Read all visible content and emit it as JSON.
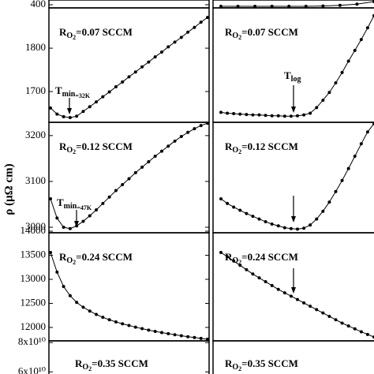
{
  "y_label": "ρ (μΩ cm)",
  "chart_data": [
    {
      "type": "line",
      "ylim": [
        390,
        415
      ],
      "yticks": [
        400
      ]
    },
    {
      "type": "line",
      "ylim": [
        390,
        415
      ],
      "color": "#000000",
      "values": [
        395,
        395,
        395,
        395,
        395,
        395,
        396,
        398,
        402,
        410
      ]
    },
    {
      "type": "line",
      "label": [
        "R",
        "O",
        "2",
        "=0.07  SCCM"
      ],
      "annotation": [
        "T",
        "min",
        "=32K"
      ],
      "ylim": [
        1629,
        1893
      ],
      "yticks": [
        1700,
        1800
      ],
      "color": "#000000",
      "values": [
        1662,
        1648,
        1642,
        1640,
        1643,
        1654,
        1665,
        1676,
        1688,
        1699,
        1711,
        1722,
        1734,
        1745,
        1757,
        1768,
        1780,
        1791,
        1803,
        1814,
        1825,
        1837,
        1848,
        1860,
        1871
      ]
    },
    {
      "type": "line",
      "label": [
        "R",
        "O",
        "2",
        "=0.07  SCCM"
      ],
      "annotation": [
        "T",
        "log"
      ],
      "ylim": [
        1629,
        1893
      ],
      "color": "#000000",
      "values": [
        1652,
        1650,
        1649,
        1648,
        1647,
        1646,
        1646,
        1645,
        1644,
        1644,
        1643,
        1643,
        1644,
        1646,
        1650,
        1663,
        1680,
        1698,
        1720,
        1744,
        1770,
        1795,
        1820,
        1847,
        1875
      ]
    },
    {
      "type": "line",
      "label": [
        "R",
        "O",
        "2",
        "=0.12  SCCM"
      ],
      "annotation": [
        "T",
        "min",
        "=47K"
      ],
      "ylim": [
        2988,
        3229
      ],
      "yticks": [
        3000,
        3100,
        3200
      ],
      "color": "#000000",
      "values": [
        3062,
        3020,
        3000,
        2997,
        3003,
        3013,
        3025,
        3038,
        3052,
        3066,
        3080,
        3093,
        3106,
        3119,
        3131,
        3143,
        3155,
        3166,
        3177,
        3188,
        3198,
        3207,
        3215,
        3222,
        3227
      ]
    },
    {
      "type": "line",
      "label": [
        "R",
        "O",
        "2",
        "=0.12  SCCM"
      ],
      "ylim": [
        2988,
        3229
      ],
      "color": "#000000",
      "values": [
        3062,
        3052,
        3044,
        3037,
        3030,
        3024,
        3018,
        3012,
        3007,
        3003,
        2999,
        2997,
        2996,
        2998,
        3005,
        3018,
        3035,
        3055,
        3078,
        3102,
        3128,
        3155,
        3182,
        3208,
        3226
      ]
    },
    {
      "type": "line",
      "label": [
        "R",
        "O",
        "2",
        "=0.24  SCCM"
      ],
      "ylim": [
        11721,
        13967
      ],
      "yticks": [
        12000,
        12500,
        13000,
        13500,
        14000
      ],
      "color": "#000000",
      "values": [
        13557,
        13150,
        12850,
        12660,
        12520,
        12420,
        12340,
        12270,
        12210,
        12160,
        12115,
        12075,
        12040,
        12005,
        11975,
        11945,
        11918,
        11893,
        11870,
        11848,
        11828,
        11808,
        11790,
        11772,
        11755
      ]
    },
    {
      "type": "line",
      "label": [
        "R",
        "O",
        "2",
        "=0.24  SCCM"
      ],
      "ylim": [
        11721,
        13967
      ],
      "color": "#000000",
      "values": [
        13557,
        13470,
        13380,
        13290,
        13200,
        13110,
        13030,
        12950,
        12870,
        12790,
        12720,
        12650,
        12580,
        12510,
        12440,
        12370,
        12300,
        12230,
        12160,
        12090,
        12030,
        11970,
        11910,
        11855,
        11800
      ]
    },
    {
      "type": "line",
      "label": [
        "R",
        "O",
        "2",
        "=0.35  SCCM"
      ],
      "ylim": [
        55300000000,
        81200000000
      ],
      "yticks": [
        {
          "value": 60000000000,
          "label": "6x10¹⁰"
        },
        {
          "value": 80000000000,
          "label": "8x10¹⁰"
        }
      ]
    },
    {
      "type": "line",
      "label": [
        "R",
        "O",
        "2",
        "=0.35  SCCM"
      ],
      "ylim": [
        55300000000,
        81200000000
      ]
    }
  ]
}
